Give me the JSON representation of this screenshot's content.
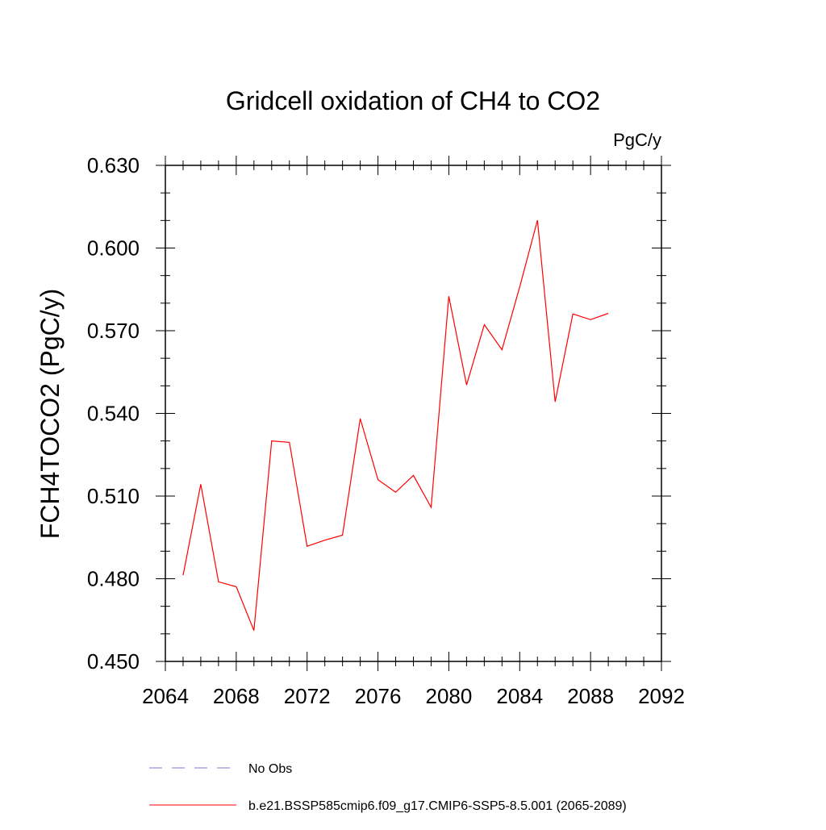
{
  "chart_data": {
    "type": "line",
    "title": "Gridcell oxidation of CH4 to CO2",
    "units_label": "PgC/y",
    "ylabel": "FCH4TOCO2  (PgC/y)",
    "xlabel": "",
    "xlim": [
      2064,
      2092
    ],
    "ylim": [
      0.45,
      0.63
    ],
    "x_ticks": [
      "2064",
      "2068",
      "2072",
      "2076",
      "2080",
      "2084",
      "2088",
      "2092"
    ],
    "y_ticks": [
      "0.450",
      "0.480",
      "0.510",
      "0.540",
      "0.570",
      "0.600",
      "0.630"
    ],
    "grid": false,
    "series": [
      {
        "name": "b.e21.BSSP585cmip6.f09_g17.CMIP6-SSP5-8.5.001 (2065-2089)",
        "color": "#ff0000",
        "style": "solid",
        "x": [
          2065,
          2066,
          2067,
          2068,
          2069,
          2070,
          2071,
          2072,
          2073,
          2074,
          2075,
          2076,
          2077,
          2078,
          2079,
          2080,
          2081,
          2082,
          2083,
          2084,
          2085,
          2086,
          2087,
          2088,
          2089
        ],
        "y": [
          0.4813,
          0.5143,
          0.4789,
          0.4771,
          0.4612,
          0.53,
          0.5295,
          0.4918,
          0.494,
          0.4958,
          0.5381,
          0.5159,
          0.5114,
          0.5175,
          0.5059,
          0.5825,
          0.5503,
          0.5722,
          0.5631,
          0.5859,
          0.6101,
          0.5442,
          0.5761,
          0.574,
          0.5763
        ]
      }
    ],
    "legend": {
      "placement": "bottom",
      "entries": [
        {
          "label": "No Obs",
          "color": "#7777cc",
          "style": "dashed"
        },
        {
          "label": "b.e21.BSSP585cmip6.f09_g17.CMIP6-SSP5-8.5.001 (2065-2089)",
          "color": "#ff0000",
          "style": "solid"
        }
      ]
    }
  }
}
